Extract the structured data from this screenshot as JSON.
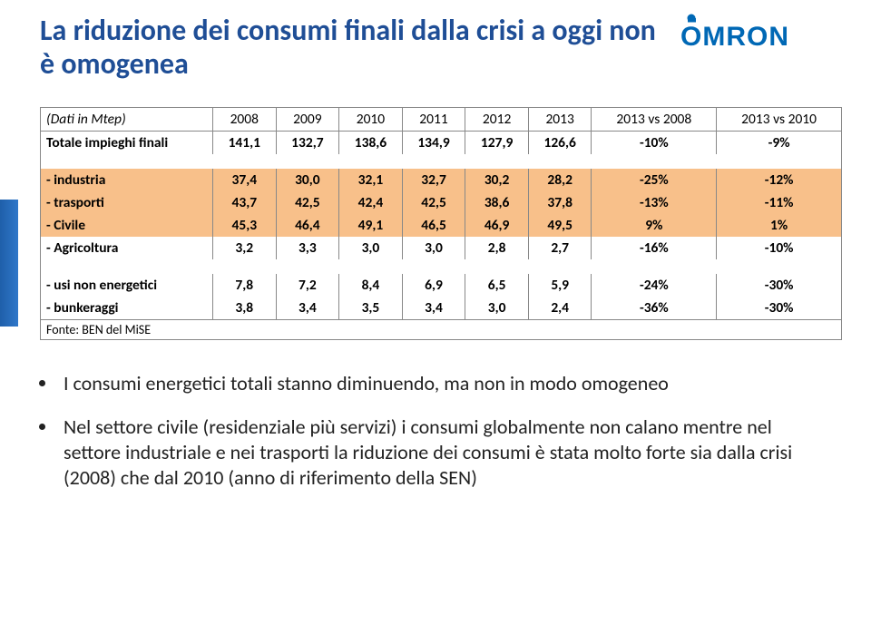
{
  "title": "La riduzione dei consumi finali dalla crisi a oggi non è omogenea",
  "logo": {
    "text": "OMRON"
  },
  "table": {
    "header_label": "(Dati in Mtep)",
    "columns": [
      "2008",
      "2009",
      "2010",
      "2011",
      "2012",
      "2013",
      "2013 vs 2008",
      "2013 vs 2010"
    ],
    "total_row": {
      "label": "Totale impieghi finali",
      "values": [
        "141,1",
        "132,7",
        "138,6",
        "134,9",
        "127,9",
        "126,6",
        "-10%",
        "-9%"
      ]
    },
    "group1": [
      {
        "label": "industria",
        "values": [
          "37,4",
          "30,0",
          "32,1",
          "32,7",
          "30,2",
          "28,2",
          "-25%",
          "-12%"
        ],
        "highlight": true
      },
      {
        "label": "trasporti",
        "values": [
          "43,7",
          "42,5",
          "42,4",
          "42,5",
          "38,6",
          "37,8",
          "-13%",
          "-11%"
        ],
        "highlight": true
      },
      {
        "label": "Civile",
        "values": [
          "45,3",
          "46,4",
          "49,1",
          "46,5",
          "46,9",
          "49,5",
          "9%",
          "1%"
        ],
        "highlight": true
      },
      {
        "label": "Agricoltura",
        "values": [
          "3,2",
          "3,3",
          "3,0",
          "3,0",
          "2,8",
          "2,7",
          "-16%",
          "-10%"
        ],
        "highlight": false
      }
    ],
    "group2": [
      {
        "label": "usi non energetici",
        "values": [
          "7,8",
          "7,2",
          "8,4",
          "6,9",
          "6,5",
          "5,9",
          "-24%",
          "-30%"
        ],
        "highlight": false
      },
      {
        "label": "bunkeraggi",
        "values": [
          "3,8",
          "3,4",
          "3,5",
          "3,4",
          "3,0",
          "2,4",
          "-36%",
          "-30%"
        ],
        "highlight": false
      }
    ],
    "footer": "Fonte: BEN del MiSE"
  },
  "bullets": [
    "I consumi energetici totali stanno diminuendo, ma non in modo omogeneo",
    "Nel settore civile (residenziale più servizi) i consumi globalmente non calano mentre nel settore industriale e nei trasporti la riduzione dei consumi è stata molto forte sia dalla crisi (2008) che dal 2010 (anno di riferimento della SEN)"
  ],
  "style": {
    "title_color": "#1f4e96",
    "highlight_color": "#f8c08a",
    "border_color": "#888888",
    "logo_color": "#0068b5",
    "accent_color_start": "#1f5faa",
    "accent_color_end": "#2f77c9"
  }
}
